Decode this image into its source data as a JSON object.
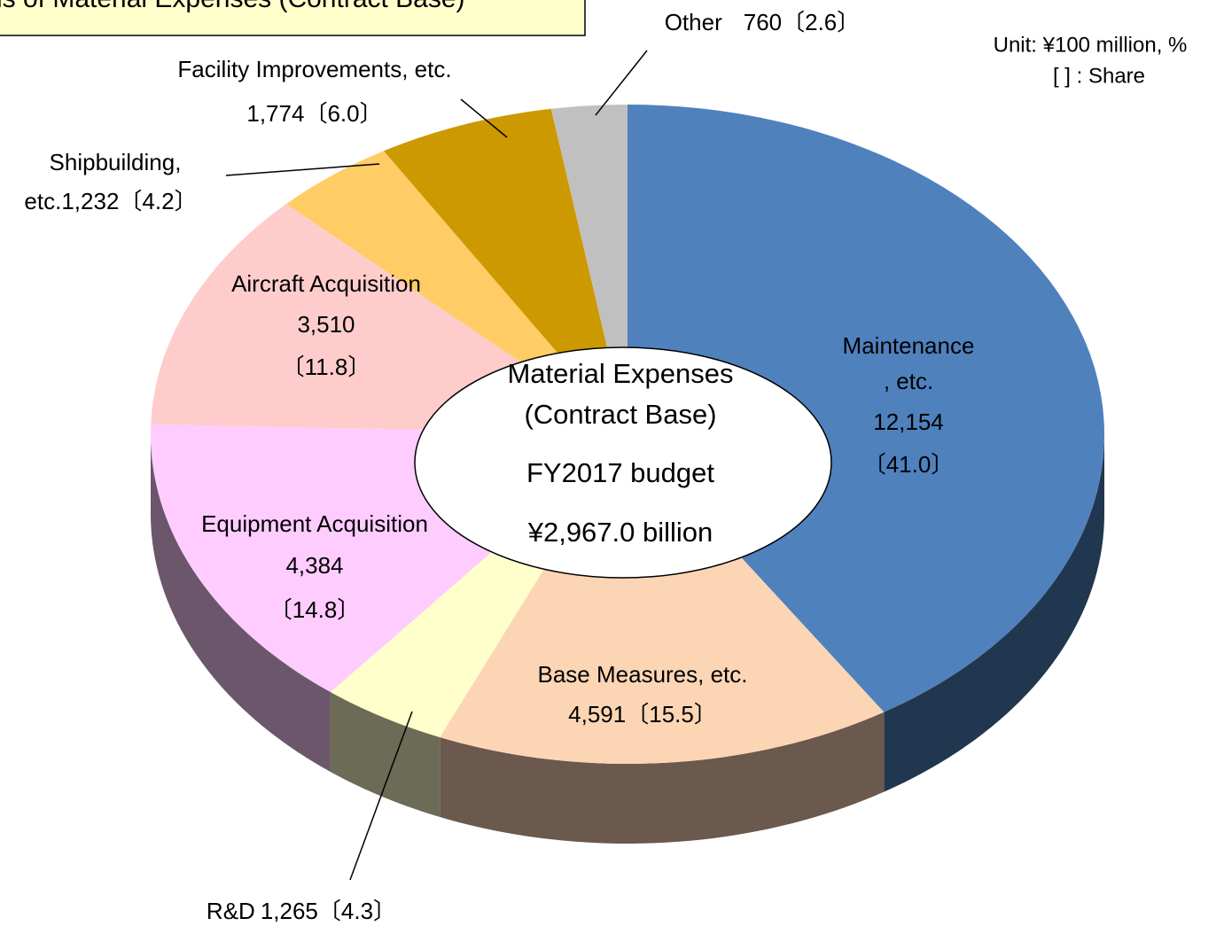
{
  "chart_data": {
    "type": "pie",
    "title": "ls of Material Expenses (Contract Base)",
    "unit_note": "Unit: ¥100 million, %",
    "share_note": "[ ] : Share",
    "center_text": [
      "Material Expenses",
      "(Contract Base)",
      "FY2017 budget",
      "¥2,967.0 billion"
    ],
    "categories": [
      [
        "Maintenance",
        ", etc."
      ],
      [
        "Base Measures, etc."
      ],
      [
        "R&D"
      ],
      [
        "Equipment Acquisition"
      ],
      [
        "Aircraft Acquisition"
      ],
      [
        "Shipbuilding,",
        "etc."
      ],
      [
        "Facility Improvements, etc."
      ],
      [
        "Other"
      ]
    ],
    "values": [
      12154,
      4591,
      1265,
      4384,
      3510,
      1232,
      1774,
      760
    ],
    "value_labels": [
      "12,154",
      "4,591",
      "1,265",
      "4,384",
      "3,510",
      "1,232",
      "1,774",
      "760"
    ],
    "shares": [
      41.0,
      15.5,
      4.3,
      14.8,
      11.8,
      4.2,
      6.0,
      2.6
    ],
    "share_labels": [
      "〔41.0〕",
      "〔15.5〕",
      "〔4.3〕",
      "〔14.8〕",
      "〔11.8〕",
      "〔4.2〕",
      "〔6.0〕",
      "〔2.6〕"
    ],
    "colors": [
      "#4f81bd",
      "#fcd5b5",
      "#ffffcc",
      "#ffccff",
      "#ffcccc",
      "#ffcc66",
      "#cc9900",
      "#c0c0c0"
    ]
  }
}
